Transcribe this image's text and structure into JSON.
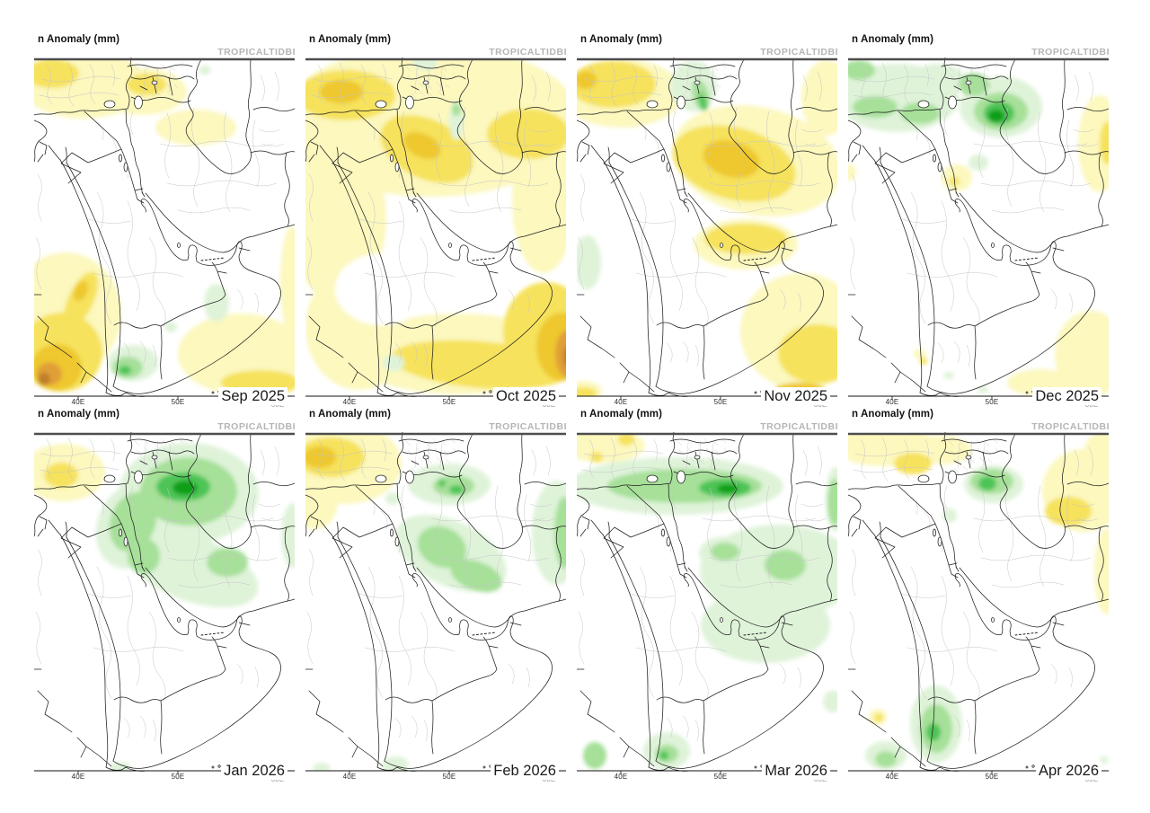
{
  "panel_common": {
    "title": "n Anomaly (mm)",
    "watermark": "TROPICALTIDBI",
    "x_ticks": [
      {
        "label": "40E",
        "x": 49,
        "muted": false
      },
      {
        "label": "50E",
        "x": 160,
        "muted": false
      },
      {
        "label": "60E",
        "x": 271,
        "muted": true
      }
    ]
  },
  "colors": {
    "y1": "#FCF8BE",
    "y2": "#F6E25C",
    "y3": "#EEC82F",
    "o1": "#E19F38",
    "o2": "#C07F2C",
    "g1": "#DFF3D9",
    "g2": "#A6E099",
    "g3": "#4EC456",
    "g4": "#0E9F14",
    "w": "#FFFFFF"
  },
  "panels": [
    {
      "month_label": "Sep 2025",
      "blobs": [
        [
          55,
          30,
          70,
          38,
          "y1",
          0
        ],
        [
          120,
          38,
          50,
          26,
          "y1",
          0
        ],
        [
          180,
          78,
          45,
          20,
          "y1",
          0
        ],
        [
          287,
          250,
          13,
          62,
          "y1",
          0
        ],
        [
          230,
          330,
          70,
          45,
          "y1",
          0
        ],
        [
          35,
          285,
          62,
          68,
          "y1",
          0
        ],
        [
          20,
          18,
          30,
          16,
          "y2",
          0
        ],
        [
          125,
          30,
          22,
          12,
          "y2",
          0
        ],
        [
          30,
          328,
          46,
          44,
          "y2",
          0
        ],
        [
          52,
          270,
          14,
          34,
          "y2",
          25
        ],
        [
          252,
          362,
          44,
          14,
          "y2",
          0
        ],
        [
          25,
          345,
          28,
          26,
          "y3",
          0
        ],
        [
          52,
          260,
          7,
          12,
          "y3",
          25
        ],
        [
          17,
          352,
          14,
          13,
          "o1",
          0
        ],
        [
          11,
          358,
          7,
          7,
          "o2",
          0
        ],
        [
          110,
          340,
          28,
          20,
          "g1",
          0
        ],
        [
          203,
          273,
          14,
          21,
          "g1",
          0
        ],
        [
          190,
          14,
          7,
          5,
          "g1",
          0
        ],
        [
          152,
          300,
          7,
          6,
          "g1",
          0
        ],
        [
          104,
          345,
          17,
          12,
          "g2",
          0
        ],
        [
          101,
          348,
          7,
          5,
          "g3",
          0
        ]
      ]
    },
    {
      "month_label": "Oct 2025",
      "blobs": [
        [
          140,
          70,
          165,
          85,
          "y1",
          0
        ],
        [
          35,
          180,
          55,
          90,
          "y1",
          0
        ],
        [
          265,
          160,
          35,
          80,
          "y1",
          0
        ],
        [
          170,
          330,
          120,
          45,
          "y1",
          0
        ],
        [
          60,
          300,
          60,
          70,
          "y1",
          0
        ],
        [
          85,
          258,
          52,
          40,
          "w",
          0
        ],
        [
          45,
          42,
          55,
          28,
          "y2",
          0
        ],
        [
          135,
          102,
          55,
          33,
          "y2",
          25
        ],
        [
          248,
          85,
          46,
          28,
          "y2",
          0
        ],
        [
          195,
          342,
          100,
          26,
          "y2",
          5
        ],
        [
          268,
          305,
          48,
          55,
          "y2",
          0
        ],
        [
          40,
          38,
          24,
          13,
          "y3",
          0
        ],
        [
          130,
          98,
          22,
          13,
          "y3",
          25
        ],
        [
          285,
          322,
          28,
          38,
          "y3",
          0
        ],
        [
          291,
          330,
          13,
          26,
          "o1",
          0
        ],
        [
          293,
          333,
          6,
          13,
          "o2",
          0
        ],
        [
          133,
          6,
          14,
          8,
          "g1",
          0
        ],
        [
          168,
          70,
          8,
          22,
          "g1",
          0
        ],
        [
          98,
          340,
          12,
          9,
          "g1",
          0
        ],
        [
          168,
          58,
          5,
          7,
          "g2",
          0
        ]
      ]
    },
    {
      "month_label": "Nov 2025",
      "blobs": [
        [
          50,
          40,
          68,
          38,
          "y1",
          0
        ],
        [
          278,
          45,
          28,
          42,
          "y1",
          0
        ],
        [
          200,
          115,
          95,
          60,
          "y1",
          12
        ],
        [
          188,
          208,
          58,
          28,
          "y1",
          0
        ],
        [
          250,
          305,
          68,
          65,
          "y1",
          0
        ],
        [
          8,
          372,
          20,
          12,
          "y1",
          0
        ],
        [
          40,
          30,
          48,
          26,
          "y2",
          0
        ],
        [
          175,
          118,
          70,
          40,
          "y2",
          15
        ],
        [
          188,
          202,
          46,
          17,
          "y2",
          0
        ],
        [
          268,
          330,
          44,
          33,
          "y2",
          0
        ],
        [
          8,
          374,
          14,
          7,
          "y2",
          0
        ],
        [
          10,
          25,
          12,
          10,
          "y3",
          0
        ],
        [
          172,
          113,
          32,
          20,
          "y3",
          15
        ],
        [
          248,
          370,
          28,
          8,
          "y3",
          0
        ],
        [
          252,
          375,
          16,
          4,
          "o1",
          0
        ],
        [
          130,
          32,
          26,
          28,
          "g1",
          0
        ],
        [
          12,
          228,
          15,
          30,
          "g1",
          0
        ],
        [
          138,
          42,
          9,
          18,
          "g2",
          -15
        ],
        [
          140,
          49,
          4,
          10,
          "g3",
          -15
        ]
      ]
    },
    {
      "month_label": "Dec 2025",
      "blobs": [
        [
          55,
          45,
          68,
          38,
          "g1",
          0
        ],
        [
          100,
          25,
          30,
          18,
          "g1",
          0
        ],
        [
          170,
          55,
          46,
          34,
          "g1",
          0
        ],
        [
          145,
          117,
          11,
          9,
          "g1",
          0
        ],
        [
          150,
          370,
          6,
          4,
          "g1",
          0
        ],
        [
          240,
          370,
          5,
          3,
          "g1",
          0
        ],
        [
          112,
          354,
          6,
          4,
          "g1",
          0
        ],
        [
          30,
          55,
          25,
          12,
          "g2",
          0
        ],
        [
          80,
          62,
          22,
          12,
          "g2",
          0
        ],
        [
          12,
          14,
          18,
          11,
          "g2",
          0
        ],
        [
          140,
          30,
          17,
          13,
          "g2",
          0
        ],
        [
          170,
          60,
          30,
          21,
          "g2",
          0
        ],
        [
          168,
          62,
          17,
          13,
          "g3",
          0
        ],
        [
          165,
          65,
          9,
          7,
          "g4",
          0
        ],
        [
          280,
          96,
          24,
          54,
          "y1",
          0
        ],
        [
          121,
          134,
          17,
          15,
          "y1",
          0
        ],
        [
          2,
          128,
          7,
          9,
          "y1",
          0
        ],
        [
          270,
          330,
          40,
          48,
          "y1",
          0
        ],
        [
          215,
          362,
          38,
          15,
          "y1",
          0
        ],
        [
          80,
          330,
          7,
          6,
          "y1",
          0
        ],
        [
          289,
          95,
          9,
          24,
          "y2",
          0
        ],
        [
          118,
          138,
          6,
          5,
          "y2",
          0
        ],
        [
          84,
          338,
          4,
          4,
          "y2",
          0
        ]
      ]
    },
    {
      "month_label": "Jan 2026",
      "blobs": [
        [
          172,
          68,
          78,
          56,
          "g1",
          0
        ],
        [
          108,
          105,
          38,
          48,
          "g1",
          20
        ],
        [
          175,
          152,
          78,
          36,
          "g1",
          20
        ],
        [
          288,
          115,
          13,
          36,
          "g1",
          0
        ],
        [
          96,
          374,
          12,
          7,
          "g1",
          0
        ],
        [
          172,
          66,
          54,
          38,
          "g2",
          0
        ],
        [
          110,
          100,
          25,
          34,
          "g2",
          20
        ],
        [
          215,
          145,
          23,
          16,
          "g2",
          0
        ],
        [
          122,
          138,
          18,
          20,
          "g2",
          0
        ],
        [
          166,
          61,
          30,
          16,
          "g3",
          0
        ],
        [
          168,
          62,
          14,
          8,
          "g4",
          0
        ],
        [
          33,
          45,
          46,
          32,
          "y1",
          0
        ],
        [
          30,
          48,
          19,
          14,
          "y2",
          0
        ]
      ]
    },
    {
      "month_label": "Feb 2026",
      "blobs": [
        [
          45,
          35,
          62,
          45,
          "y1",
          0
        ],
        [
          10,
          78,
          26,
          30,
          "y1",
          0
        ],
        [
          28,
          28,
          38,
          22,
          "y2",
          0
        ],
        [
          16,
          28,
          18,
          12,
          "y3",
          0
        ],
        [
          160,
          58,
          46,
          23,
          "g1",
          0
        ],
        [
          97,
          74,
          8,
          7,
          "g1",
          0
        ],
        [
          162,
          135,
          66,
          36,
          "g1",
          25
        ],
        [
          280,
          112,
          28,
          58,
          "g1",
          0
        ],
        [
          100,
          370,
          15,
          9,
          "g1",
          0
        ],
        [
          18,
          374,
          10,
          6,
          "g1",
          0
        ],
        [
          165,
          60,
          23,
          12,
          "g2",
          0
        ],
        [
          152,
          128,
          28,
          22,
          "g2",
          25
        ],
        [
          190,
          160,
          30,
          16,
          "g2",
          20
        ],
        [
          288,
          112,
          11,
          40,
          "g2",
          0
        ],
        [
          168,
          64,
          8,
          5,
          "g3",
          0
        ],
        [
          152,
          57,
          4,
          4,
          "g3",
          0
        ]
      ]
    },
    {
      "month_label": "Mar 2026",
      "blobs": [
        [
          30,
          15,
          46,
          19,
          "y1",
          0
        ],
        [
          55,
          8,
          9,
          7,
          "y2",
          0
        ],
        [
          22,
          28,
          7,
          6,
          "y2",
          0
        ],
        [
          110,
          60,
          120,
          32,
          "g1",
          0
        ],
        [
          165,
          135,
          29,
          19,
          "g1",
          0
        ],
        [
          225,
          155,
          88,
          52,
          "g1",
          0
        ],
        [
          210,
          215,
          72,
          42,
          "g1",
          0
        ],
        [
          288,
          75,
          11,
          36,
          "g1",
          0
        ],
        [
          100,
          355,
          26,
          21,
          "g1",
          0
        ],
        [
          285,
          300,
          11,
          12,
          "g1",
          0
        ],
        [
          120,
          60,
          86,
          19,
          "g2",
          0
        ],
        [
          165,
          133,
          16,
          10,
          "g2",
          0
        ],
        [
          232,
          148,
          23,
          17,
          "g2",
          0
        ],
        [
          20,
          360,
          13,
          15,
          "g2",
          0
        ],
        [
          100,
          358,
          13,
          10,
          "g2",
          0
        ],
        [
          287,
          78,
          8,
          26,
          "g2",
          0
        ],
        [
          165,
          62,
          29,
          10,
          "g3",
          0
        ],
        [
          97,
          360,
          5,
          5,
          "g3",
          0
        ],
        [
          168,
          63,
          12,
          5,
          "g4",
          0
        ]
      ]
    },
    {
      "month_label": "Apr 2026",
      "blobs": [
        [
          40,
          15,
          56,
          23,
          "y1",
          0
        ],
        [
          105,
          20,
          32,
          16,
          "y1",
          0
        ],
        [
          262,
          65,
          46,
          46,
          "y1",
          0
        ],
        [
          285,
          20,
          22,
          20,
          "y1",
          0
        ],
        [
          288,
          155,
          14,
          48,
          "y1",
          0
        ],
        [
          33,
          317,
          10,
          9,
          "y1",
          0
        ],
        [
          72,
          35,
          21,
          12,
          "y2",
          0
        ],
        [
          245,
          88,
          26,
          16,
          "y2",
          0
        ],
        [
          34,
          318,
          5,
          5,
          "y2",
          0
        ],
        [
          162,
          58,
          33,
          21,
          "g1",
          0
        ],
        [
          113,
          93,
          8,
          8,
          "g1",
          0
        ],
        [
          98,
          325,
          29,
          43,
          "g1",
          0
        ],
        [
          42,
          360,
          23,
          16,
          "g1",
          0
        ],
        [
          285,
          365,
          5,
          4,
          "g1",
          0
        ],
        [
          160,
          55,
          24,
          14,
          "g2",
          0
        ],
        [
          98,
          330,
          18,
          27,
          "g2",
          0
        ],
        [
          42,
          364,
          12,
          9,
          "g2",
          0
        ],
        [
          155,
          57,
          10,
          8,
          "g3",
          0
        ],
        [
          95,
          334,
          8,
          10,
          "g3",
          0
        ]
      ]
    }
  ]
}
